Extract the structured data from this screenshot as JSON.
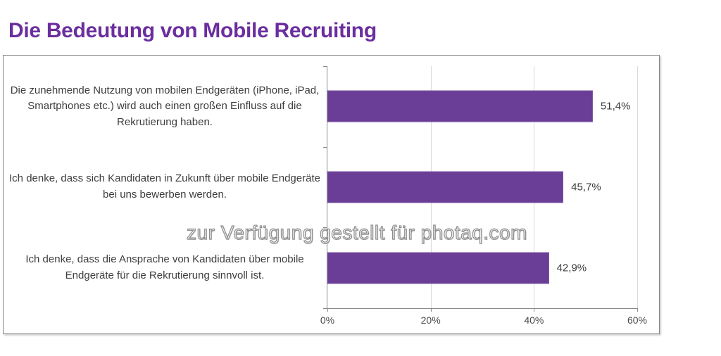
{
  "title": "Die Bedeutung von Mobile Recruiting",
  "watermark": "zur Verfügung gestellt für photaq.com",
  "colors": {
    "title_color": "#6b2e9e",
    "bar": "#6a3d96",
    "bar_border": "#7e57a8",
    "gridline": "#d9d9d9",
    "axis": "#8a8a8a",
    "frame_border": "#858585",
    "text": "#3d3d3d",
    "tick_text": "#4a4a4a"
  },
  "chart_data": {
    "type": "bar",
    "orientation": "horizontal",
    "title": "Die Bedeutung von Mobile Recruiting",
    "xlabel": "",
    "ylabel": "",
    "xlim": [
      0,
      60
    ],
    "x_ticks": [
      0,
      20,
      40,
      60
    ],
    "x_tick_labels": [
      "0%",
      "20%",
      "40%",
      "60%"
    ],
    "grid": true,
    "legend": false,
    "categories": [
      "Die zunehmende Nutzung von mobilen Endgeräten (iPhone, iPad, Smartphones etc.) wird auch einen großen Einfluss auf die Rekrutierung haben.",
      "Ich denke, dass sich Kandidaten in Zukunft über mobile Endgeräte bei uns bewerben werden.",
      "Ich denke, dass die Ansprache von Kandidaten über mobile Endgeräte für die Rekrutierung sinnvoll ist."
    ],
    "values": [
      51.4,
      45.7,
      42.9
    ],
    "value_labels": [
      "51,4%",
      "45,7%",
      "42,9%"
    ]
  }
}
